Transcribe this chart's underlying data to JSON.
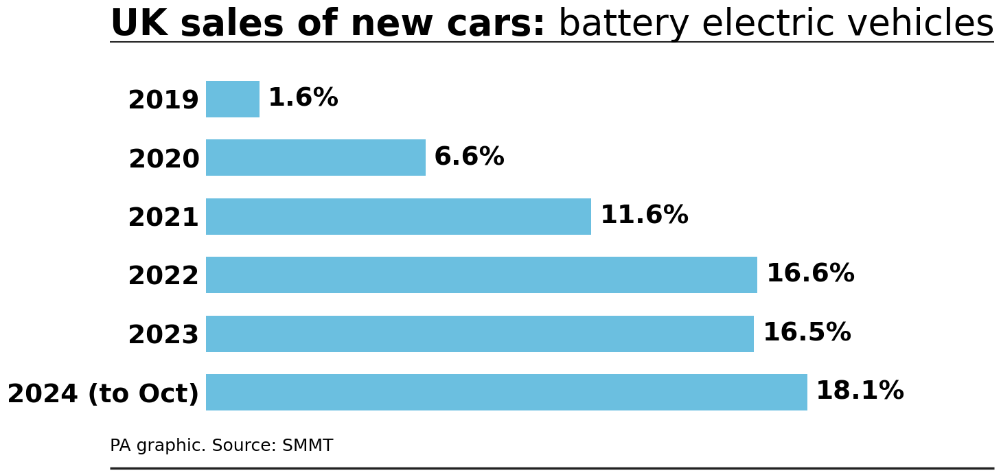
{
  "title_bold": "UK sales of new cars:",
  "title_regular": " battery electric vehicles",
  "categories": [
    "2019",
    "2020",
    "2021",
    "2022",
    "2023",
    "2024 (to Oct)"
  ],
  "values": [
    1.6,
    6.6,
    11.6,
    16.6,
    16.5,
    18.1
  ],
  "labels": [
    "1.6%",
    "6.6%",
    "11.6%",
    "16.6%",
    "16.5%",
    "18.1%"
  ],
  "bar_color": "#6BBFE0",
  "background_color": "#ffffff",
  "text_color": "#000000",
  "title_fontsize": 38,
  "label_fontsize": 27,
  "source_text": "PA graphic. Source: SMMT",
  "source_fontsize": 18,
  "xlim": [
    0,
    22
  ]
}
